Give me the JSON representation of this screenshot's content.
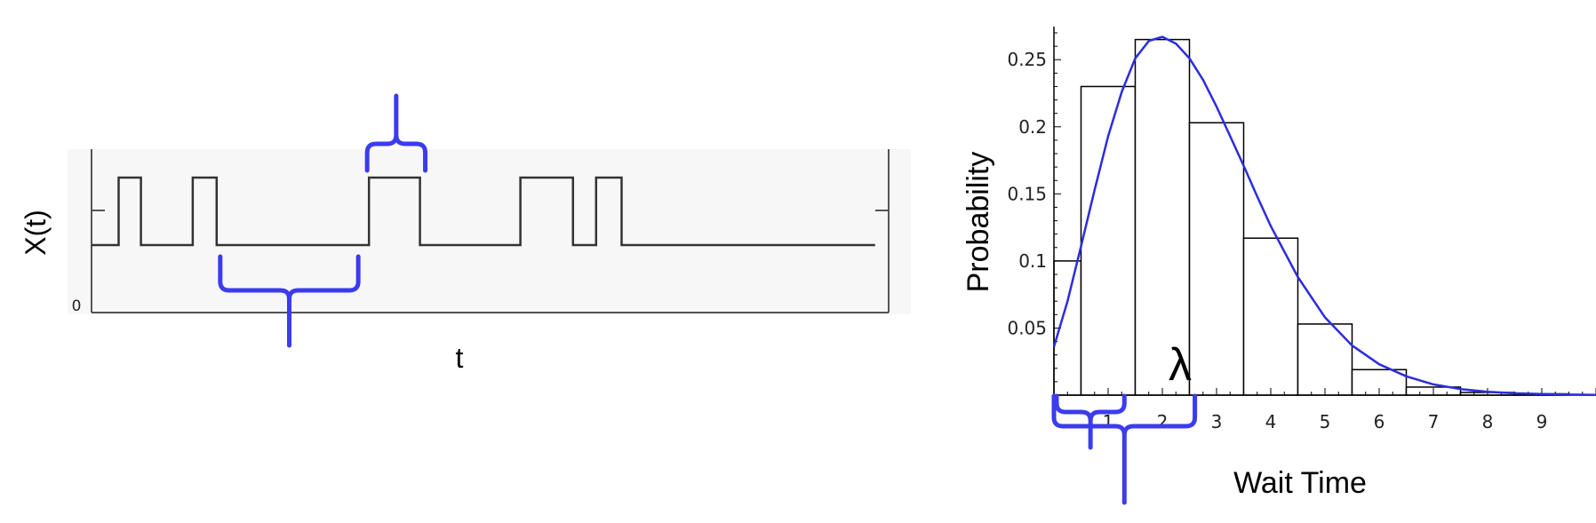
{
  "chart_data": [
    {
      "type": "line",
      "xlabel": "t",
      "ylabel": "X(t)",
      "ytick_labels": [
        "0"
      ],
      "grid": false,
      "plot_background": "#f7f7f7",
      "signal_color": "#333333",
      "x_range": [
        0,
        10
      ],
      "y_levels": {
        "zero": 0,
        "low": 1,
        "high": 2
      },
      "signal": {
        "x": [
          0,
          0.34,
          0.34,
          0.62,
          0.62,
          1.27,
          1.27,
          1.57,
          1.57,
          3.48,
          3.48,
          4.12,
          4.12,
          5.38,
          5.38,
          6.04,
          6.04,
          6.33,
          6.33,
          6.65,
          6.65,
          9.83
        ],
        "y": [
          1,
          1,
          2,
          2,
          1,
          1,
          2,
          2,
          1,
          1,
          2,
          2,
          1,
          1,
          2,
          2,
          1,
          1,
          2,
          2,
          1,
          1
        ]
      },
      "annotations": [
        {
          "type": "brace",
          "direction": "up",
          "from": 3.48,
          "to": 4.12,
          "color": "#3b3bf0"
        },
        {
          "type": "brace",
          "direction": "down",
          "from": 1.57,
          "to": 3.48,
          "color": "#3b3bf0"
        }
      ]
    },
    {
      "type": "bar",
      "xlabel": "Wait Time",
      "ylabel": "Probability",
      "x_tick_labels": [
        "1",
        "2",
        "3",
        "4",
        "5",
        "6",
        "7",
        "8",
        "9"
      ],
      "y_tick_labels": [
        "0.05",
        "0.1",
        "0.15",
        "0.2",
        "0.25"
      ],
      "xlim": [
        0,
        10
      ],
      "ylim": [
        0,
        0.27
      ],
      "grid": false,
      "bars": {
        "centers": [
          0,
          1,
          2,
          3,
          4,
          5,
          6,
          7,
          8,
          9
        ],
        "width": 1,
        "values": [
          0.1,
          0.23,
          0.265,
          0.203,
          0.117,
          0.053,
          0.019,
          0.006,
          0.002,
          0.001
        ]
      },
      "curve": {
        "x": [
          0,
          0.25,
          0.5,
          0.75,
          1,
          1.25,
          1.5,
          1.75,
          2,
          2.25,
          2.5,
          2.75,
          3,
          3.25,
          3.5,
          3.75,
          4,
          4.5,
          5,
          5.5,
          6,
          6.5,
          7,
          7.5,
          8,
          8.5,
          9,
          9.5,
          10
        ],
        "y": [
          0.036,
          0.07,
          0.111,
          0.153,
          0.193,
          0.226,
          0.251,
          0.264,
          0.267,
          0.262,
          0.251,
          0.235,
          0.215,
          0.193,
          0.171,
          0.148,
          0.126,
          0.088,
          0.058,
          0.037,
          0.023,
          0.014,
          0.008,
          0.0045,
          0.0025,
          0.0014,
          0.0008,
          0.0004,
          0.0002
        ],
        "color": "#2c2ce0"
      },
      "annotations": [
        {
          "type": "text",
          "text": "λ",
          "x": 2.3,
          "y": 0.012,
          "color": "#ff0000"
        },
        {
          "type": "brace",
          "direction": "down",
          "from": 0,
          "to": 1.3,
          "color": "#3b3bf0"
        },
        {
          "type": "brace",
          "direction": "down",
          "from": 0,
          "to": 2.6,
          "color": "#3b3bf0"
        }
      ]
    }
  ]
}
